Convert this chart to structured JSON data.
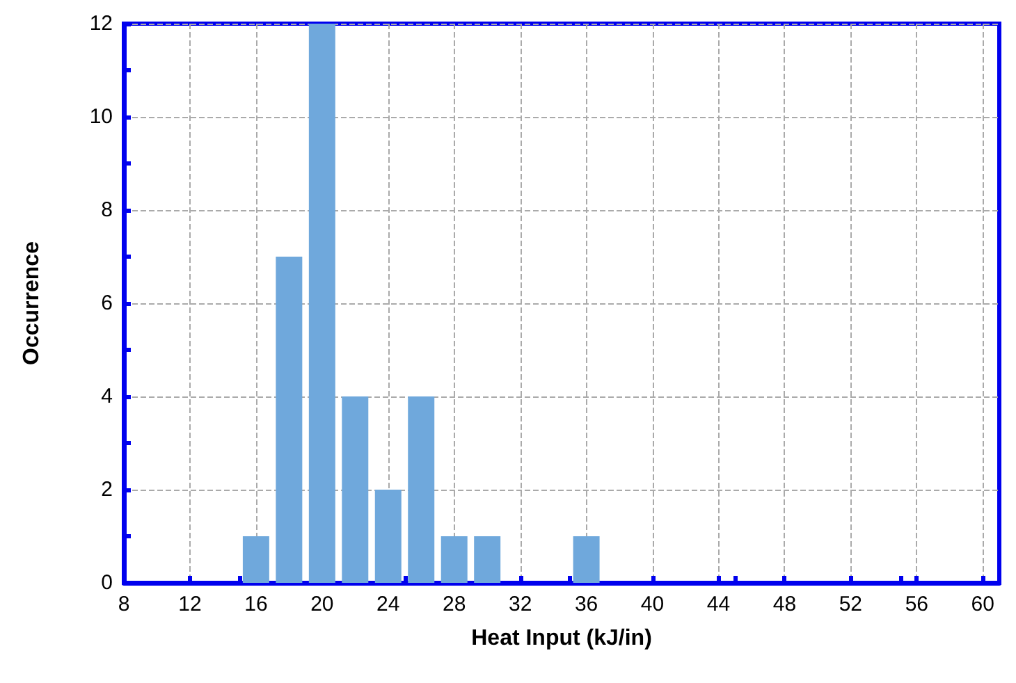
{
  "chart_data": {
    "type": "bar",
    "xlabel": "Heat Input (kJ/in)",
    "ylabel": "Occurrence",
    "x": [
      16,
      18,
      20,
      22,
      24,
      26,
      28,
      30,
      36
    ],
    "values": [
      1,
      7,
      12,
      4,
      2,
      4,
      1,
      1,
      1
    ],
    "color": "#6fa8dc",
    "xlim": [
      8,
      61
    ],
    "xticks": [
      8,
      12,
      16,
      20,
      24,
      28,
      32,
      36,
      40,
      44,
      48,
      52,
      56,
      60
    ],
    "ylim": [
      0,
      12
    ],
    "yticks": [
      0,
      2,
      4,
      6,
      8,
      10,
      12
    ],
    "grid": true
  }
}
